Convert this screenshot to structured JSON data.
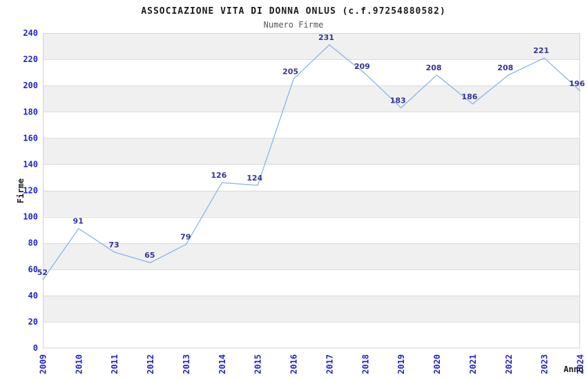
{
  "chart_data": {
    "type": "line",
    "title": "ASSOCIAZIONE VITA DI DONNA ONLUS (c.f.97254880582)",
    "subtitle": "Numero Firme",
    "xlabel": "Anno",
    "ylabel": "Firme",
    "categories": [
      "2009",
      "2010",
      "2011",
      "2012",
      "2013",
      "2014",
      "2015",
      "2016",
      "2017",
      "2018",
      "2019",
      "2020",
      "2021",
      "2022",
      "2023",
      "2024"
    ],
    "values": [
      52,
      91,
      73,
      65,
      79,
      126,
      124,
      205,
      231,
      209,
      183,
      208,
      186,
      208,
      221,
      196
    ],
    "ylim": [
      0,
      240
    ],
    "ytick_step": 20,
    "yticks": [
      0,
      20,
      40,
      60,
      80,
      100,
      120,
      140,
      160,
      180,
      200,
      220,
      240
    ],
    "grid": true,
    "legend_position": "none",
    "band_pattern": "alternating 20-unit horizontal bands; gray bands at 20-40, 60-80, 100-120, 140-160, 180-200, 220-240",
    "point_labels_shown": true,
    "colors": {
      "line": "#7fb2e6",
      "axis_tick_labels": "#2222cc",
      "point_labels": "#333399",
      "band": "#f0f0f0",
      "gridline": "#dcdcdc",
      "plot_border": "#d3d3d3",
      "title": "#1a1a1a",
      "subtitle": "#555555",
      "axis_titles": "#1a1a1a",
      "background": "#ffffff"
    }
  }
}
